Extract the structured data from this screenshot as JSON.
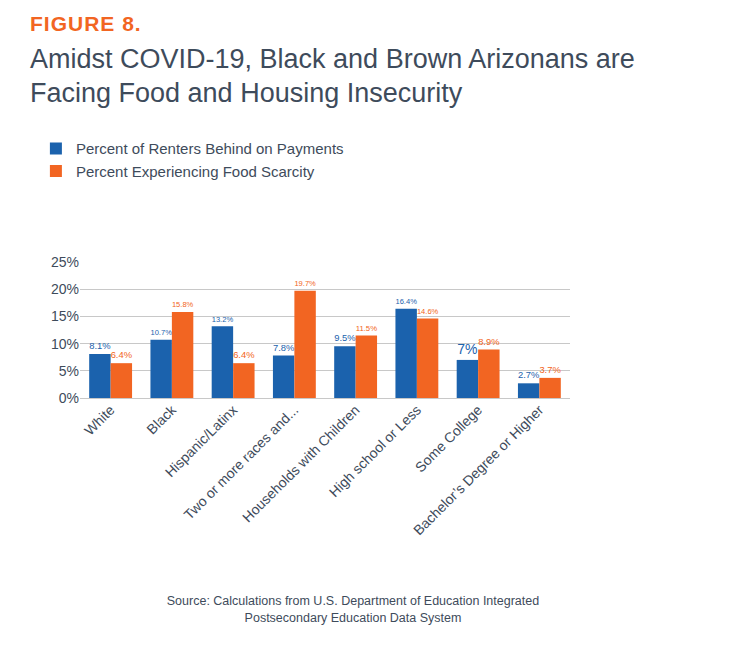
{
  "chart_data": {
    "type": "bar",
    "figure_label": "FIGURE 8.",
    "title": "Amidst COVID-19, Black and Brown Arizonans are Facing Food and Housing Insecurity",
    "source": "Source: Calculations from U.S. Department of Education Integrated Postsecondary Education Data System",
    "categories": [
      "White",
      "Black",
      "Hispanic/Latinx",
      "Two or more races and...",
      "Households with Children",
      "High school or Less",
      "Some College",
      "Bachelor’s Degree or Higher"
    ],
    "series": [
      {
        "name": "Percent of Renters Behind on Payments",
        "color": "#1b62ad",
        "values": [
          8.1,
          10.7,
          13.2,
          7.8,
          9.5,
          16.4,
          7,
          2.7
        ],
        "value_labels": [
          "8.1%",
          "10.7%",
          "13.2%",
          "7.8%",
          "9.5%",
          "16.4%",
          "7%",
          "2.7%"
        ]
      },
      {
        "name": "Percent Experiencing Food Scarcity",
        "color": "#f26522",
        "values": [
          6.4,
          15.8,
          6.4,
          19.7,
          11.5,
          14.6,
          8.9,
          3.7
        ],
        "value_labels": [
          "6.4%",
          "15.8%",
          "6.4%",
          "19.7%",
          "11.5%",
          "14.6%",
          "8.9%",
          "3.7%"
        ]
      }
    ],
    "ylim": [
      0,
      25
    ],
    "yticks": [
      {
        "value": 0,
        "label": "0%"
      },
      {
        "value": 5,
        "label": "5%"
      },
      {
        "value": 10,
        "label": "10%"
      },
      {
        "value": 15,
        "label": "15%"
      },
      {
        "value": 20,
        "label": "20%"
      },
      {
        "value": 25,
        "label": "25%"
      }
    ],
    "grid": true,
    "data_labels": true,
    "legend": "top"
  }
}
